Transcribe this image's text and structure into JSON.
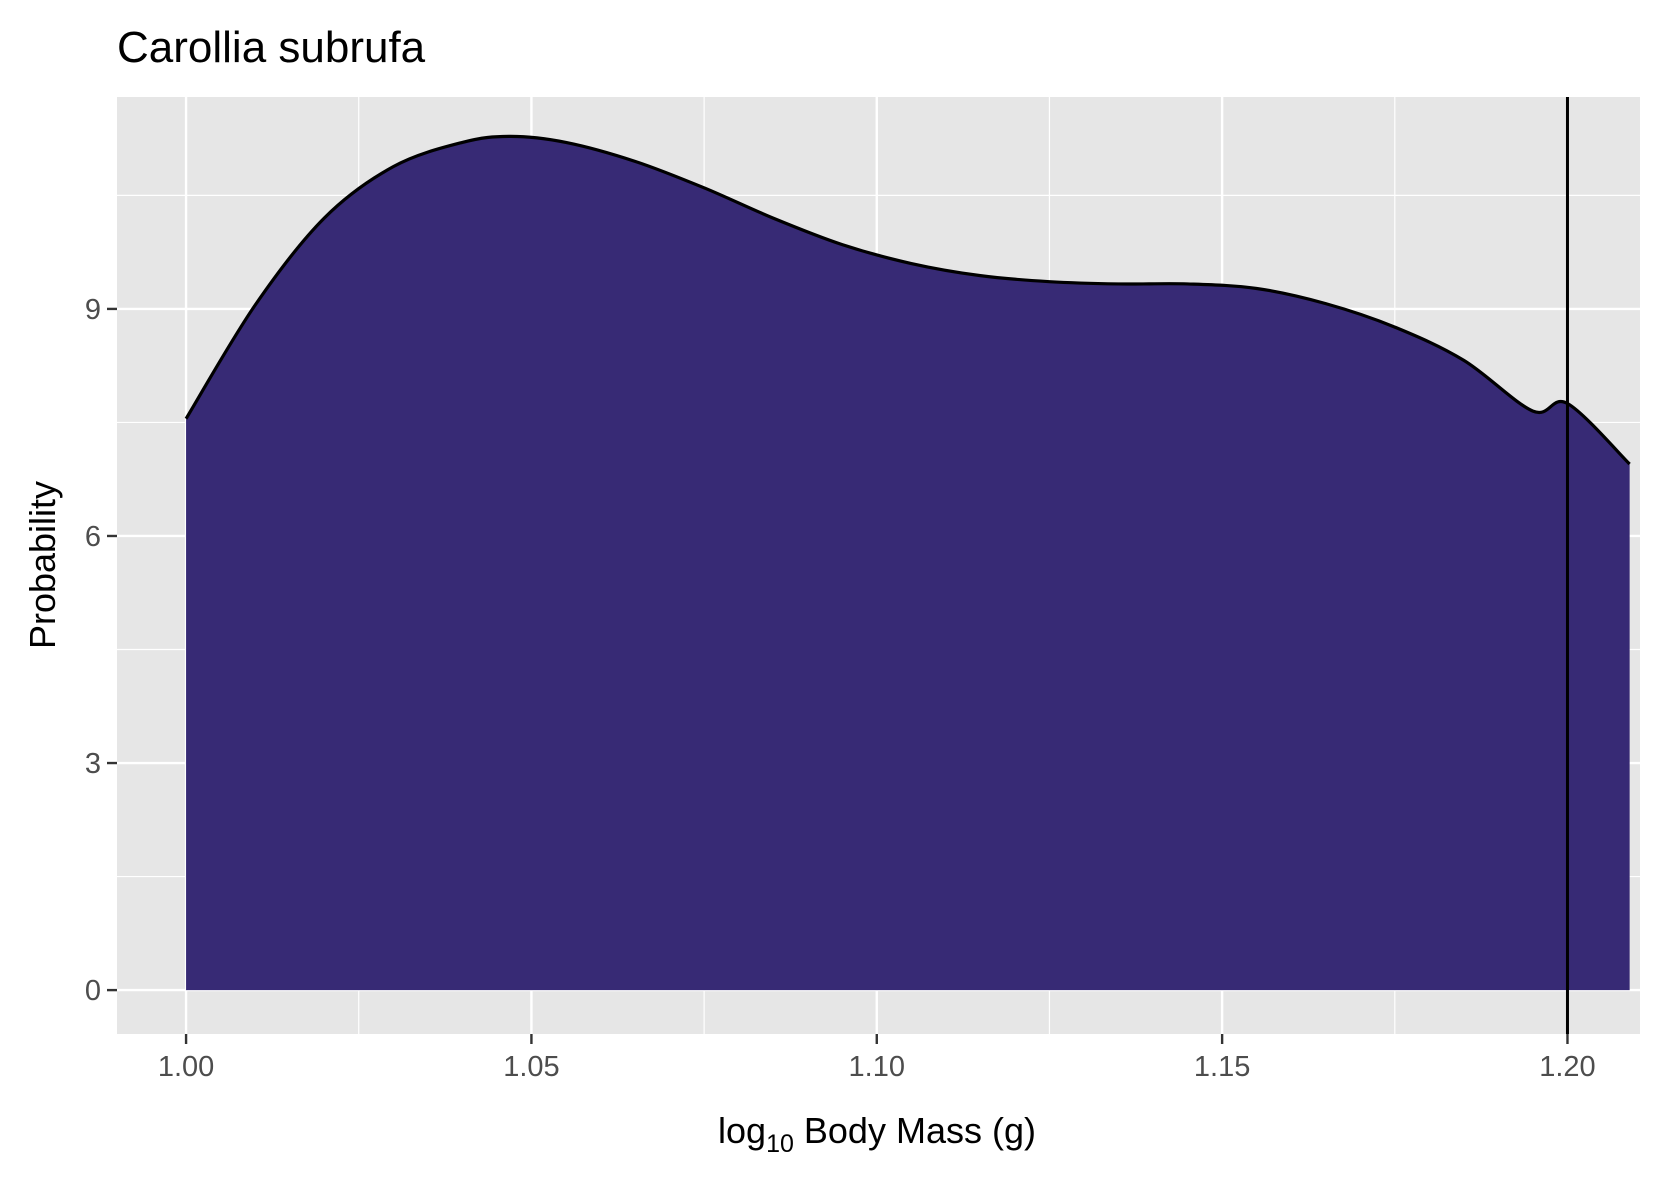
{
  "chart_data": {
    "type": "area",
    "title": "Carollia subrufa",
    "xlabel": {
      "base": "log",
      "subscript": "10",
      "rest": " Body Mass (g)"
    },
    "ylabel": "Probability",
    "xlim": [
      0.99,
      1.2105
    ],
    "ylim": [
      -0.58,
      11.8
    ],
    "xticks": [
      1.0,
      1.05,
      1.1,
      1.15,
      1.2
    ],
    "xtick_labels": [
      "1.00",
      "1.05",
      "1.10",
      "1.15",
      "1.20"
    ],
    "yticks": [
      0,
      3,
      6,
      9
    ],
    "ytick_labels": [
      "0",
      "3",
      "6",
      "9"
    ],
    "grid": true,
    "background": "#e6e6e6",
    "grid_color": "#ffffff",
    "fill_color": "#372a75",
    "line_color": "#000000",
    "vline_x": 1.2,
    "density": {
      "x": [
        1.0,
        1.01,
        1.02,
        1.03,
        1.04,
        1.047,
        1.055,
        1.065,
        1.075,
        1.085,
        1.095,
        1.105,
        1.115,
        1.125,
        1.135,
        1.145,
        1.155,
        1.165,
        1.175,
        1.185,
        1.195,
        1.2,
        1.209
      ],
      "y": [
        7.55,
        9.05,
        10.2,
        10.88,
        11.2,
        11.28,
        11.2,
        10.95,
        10.6,
        10.2,
        9.85,
        9.6,
        9.44,
        9.36,
        9.33,
        9.33,
        9.27,
        9.07,
        8.76,
        8.32,
        7.65,
        7.75,
        6.95
      ]
    }
  }
}
